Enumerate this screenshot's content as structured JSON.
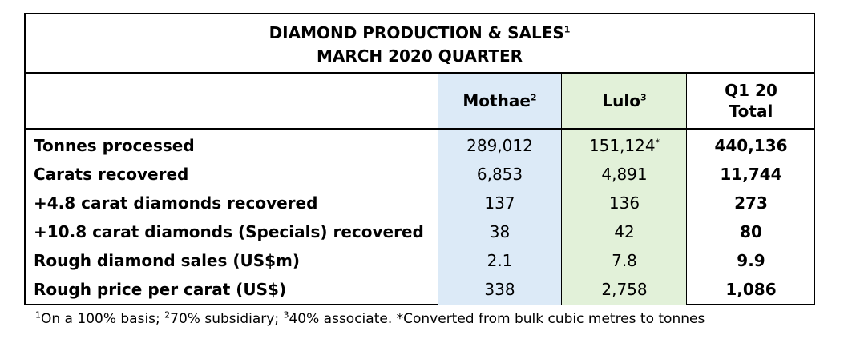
{
  "title": {
    "line1": "DIAMOND PRODUCTION & SALES",
    "line1_sup": "1",
    "line2": "MARCH 2020 QUARTER"
  },
  "columns": {
    "mothae": {
      "label": "Mothae",
      "sup": "2",
      "bg": "#dceaf7"
    },
    "lulo": {
      "label": "Lulo",
      "sup": "3",
      "bg": "#e2f1d9"
    },
    "total": {
      "line1": "Q1 20",
      "line2": "Total"
    }
  },
  "rows": [
    {
      "label": "Tonnes processed",
      "mothae": "289,012",
      "lulo": "151,124",
      "lulo_sup": "*",
      "total": "440,136"
    },
    {
      "label": "Carats recovered",
      "mothae": "6,853",
      "lulo": "4,891",
      "lulo_sup": "",
      "total": "11,744"
    },
    {
      "label": "+4.8 carat diamonds recovered",
      "mothae": "137",
      "lulo": "136",
      "lulo_sup": "",
      "total": "273"
    },
    {
      "label": "+10.8 carat diamonds (Specials) recovered",
      "mothae": "38",
      "lulo": "42",
      "lulo_sup": "",
      "total": "80"
    },
    {
      "label": "Rough diamond sales (US$m)",
      "mothae": "2.1",
      "lulo": "7.8",
      "lulo_sup": "",
      "total": "9.9"
    },
    {
      "label": "Rough price per carat (US$)",
      "mothae": "338",
      "lulo": "2,758",
      "lulo_sup": "",
      "total": "1,086"
    }
  ],
  "footnote": {
    "s1": "1",
    "t1": "On a 100% basis; ",
    "s2": "2",
    "t2": "70% subsidiary; ",
    "s3": "3",
    "t3": "40% associate. *Converted from bulk cubic metres to tonnes"
  }
}
